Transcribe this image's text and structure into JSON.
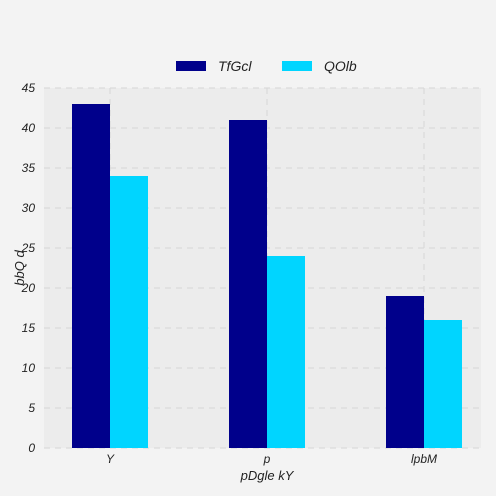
{
  "chart_data": {
    "type": "bar",
    "title": "",
    "xlabel": "pDgle kY",
    "ylabel": "bbQ d",
    "categories": [
      "Y",
      "p",
      "lpbM"
    ],
    "series": [
      {
        "name": "TfGcl",
        "values": [
          43,
          41,
          19
        ],
        "color": "#00008b"
      },
      {
        "name": "QOlb",
        "values": [
          34,
          24,
          16
        ],
        "color": "#00d5ff"
      }
    ],
    "ylim": [
      0,
      45
    ],
    "yticks": [
      0,
      5,
      10,
      15,
      20,
      25,
      30,
      35,
      40,
      45
    ],
    "grid": true,
    "legend_position": "top-center",
    "background": "#f3f3f3",
    "plot_background": "#ececec"
  }
}
